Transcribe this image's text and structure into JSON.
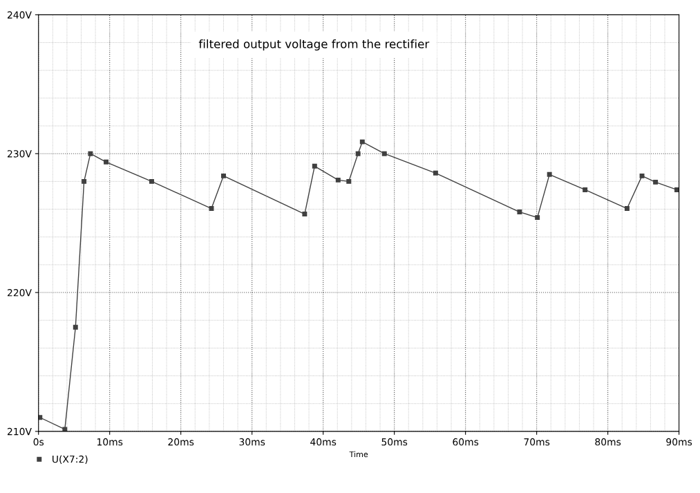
{
  "chart_data": {
    "type": "line",
    "xlabel": "Time",
    "annotations": [
      "filtered output voltage from the rectifier"
    ],
    "x": [
      0.2,
      3.7,
      5.2,
      6.4,
      7.3,
      9.5,
      15.9,
      24.3,
      26.0,
      37.4,
      38.8,
      42.1,
      43.6,
      44.9,
      45.5,
      48.6,
      55.8,
      67.6,
      70.1,
      71.8,
      76.8,
      82.7,
      84.8,
      86.7,
      89.7
    ],
    "series": [
      {
        "name": "U(X7:2)",
        "color": "#404040",
        "values": [
          211.0,
          210.15,
          217.5,
          228.0,
          230.0,
          229.4,
          228.0,
          226.05,
          228.4,
          225.65,
          229.1,
          228.1,
          228.0,
          230.0,
          230.85,
          230.0,
          228.6,
          225.8,
          225.4,
          228.5,
          227.4,
          226.05,
          228.4,
          227.95,
          227.4
        ]
      }
    ],
    "xlim": [
      0,
      90
    ],
    "xticks": [
      {
        "value": 0,
        "label": "0s"
      },
      {
        "value": 10,
        "label": "10ms"
      },
      {
        "value": 20,
        "label": "20ms"
      },
      {
        "value": 30,
        "label": "30ms"
      },
      {
        "value": 40,
        "label": "40ms"
      },
      {
        "value": 50,
        "label": "50ms"
      },
      {
        "value": 60,
        "label": "60ms"
      },
      {
        "value": 70,
        "label": "70ms"
      },
      {
        "value": 80,
        "label": "80ms"
      },
      {
        "value": 90,
        "label": "90ms"
      }
    ],
    "ylim": [
      210,
      240
    ],
    "yticks": [
      {
        "value": 210,
        "label": "210V"
      },
      {
        "value": 220,
        "label": "220V"
      },
      {
        "value": 230,
        "label": "230V"
      },
      {
        "value": 240,
        "label": "240V"
      }
    ],
    "grid": true,
    "line_style": "solid",
    "marker": "square",
    "legend": "bottom left"
  }
}
